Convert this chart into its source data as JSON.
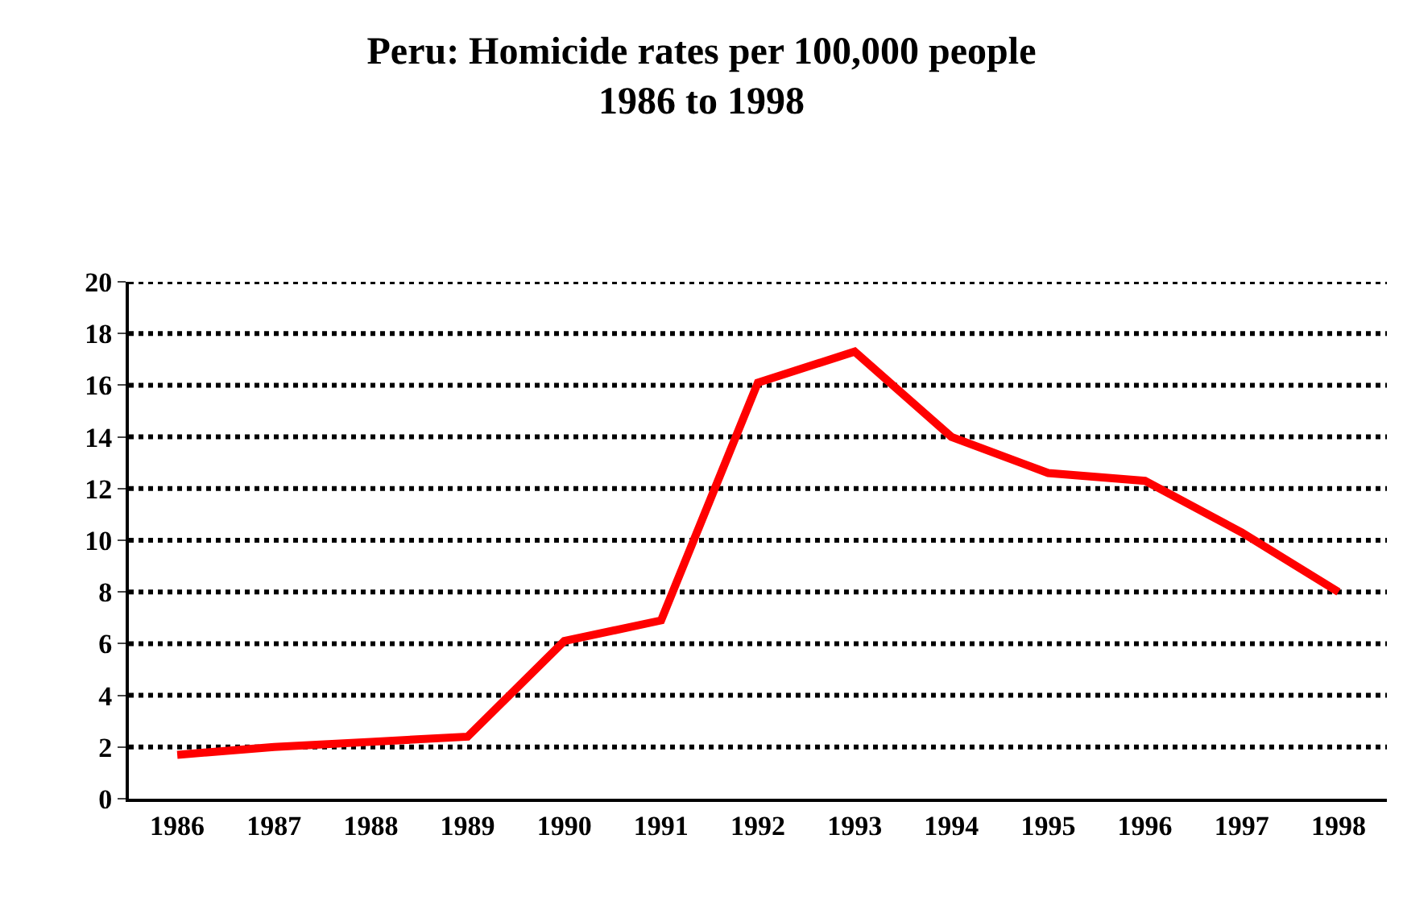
{
  "chart_data": {
    "type": "line",
    "title": "Peru: Homicide rates per 100,000 people\n1986 to 1998",
    "categories": [
      "1986",
      "1987",
      "1988",
      "1989",
      "1990",
      "1991",
      "1992",
      "1993",
      "1994",
      "1995",
      "1996",
      "1997",
      "1998"
    ],
    "series": [
      {
        "color": "#ff0000",
        "values": [
          1.7,
          2.0,
          2.2,
          2.4,
          6.1,
          6.9,
          16.1,
          17.3,
          14.0,
          12.6,
          12.3,
          10.3,
          8.0
        ]
      }
    ],
    "ylim": [
      0,
      20
    ],
    "yticks": [
      0,
      2,
      4,
      6,
      8,
      10,
      12,
      14,
      16,
      18,
      20
    ],
    "grid": "y",
    "marker": "none",
    "line_style": "solid"
  }
}
